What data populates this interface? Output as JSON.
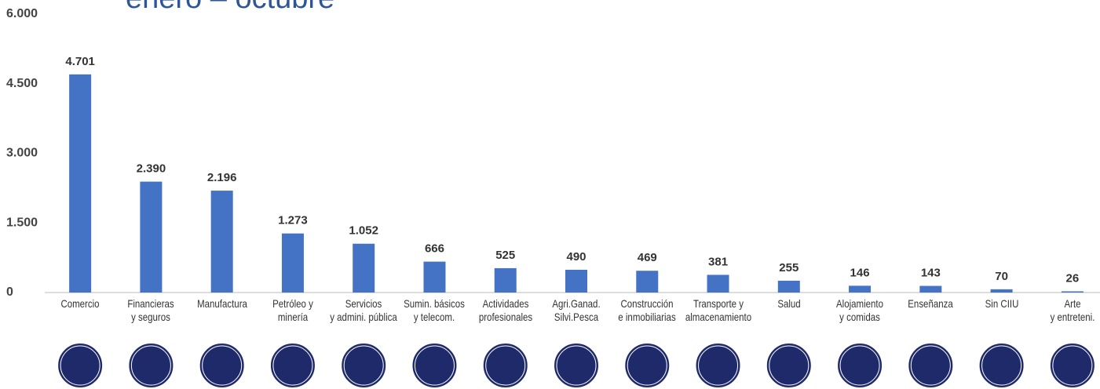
{
  "chart_data": {
    "type": "bar",
    "subtitle": "enero – octubre",
    "categories": [
      "Comercio",
      "Financieras\ny seguros",
      "Manufactura",
      "Petróleo y\nminería",
      "Servicios\ny admini. pública",
      "Sumin. básicos\ny telecom.",
      "Actividades\nprofesionales",
      "Agri.Ganad.\nSilvi.Pesca",
      "Construcción\ne inmobiliarias",
      "Transporte y\nalmacenamiento",
      "Salud",
      "Alojamiento\ny comidas",
      "Enseñanza",
      "Sin CIIU",
      "Arte\ny entreteni."
    ],
    "values": [
      4701,
      2390,
      2196,
      1273,
      1052,
      666,
      525,
      490,
      469,
      381,
      255,
      146,
      143,
      70,
      26
    ],
    "value_labels": [
      "4.701",
      "2.390",
      "2.196",
      "1.273",
      "1.052",
      "666",
      "525",
      "490",
      "469",
      "381",
      "255",
      "146",
      "143",
      "70",
      "26"
    ],
    "color": "#4472c4",
    "ylim": [
      0,
      6000
    ],
    "yticks": [
      0,
      {
        "value": 1500,
        "label": "1.500"
      },
      {
        "value": 3000,
        "label": "3.000"
      },
      {
        "value": 4500,
        "label": "4.500"
      },
      {
        "value": 6000,
        "label": "6.000"
      }
    ],
    "grid": false
  }
}
